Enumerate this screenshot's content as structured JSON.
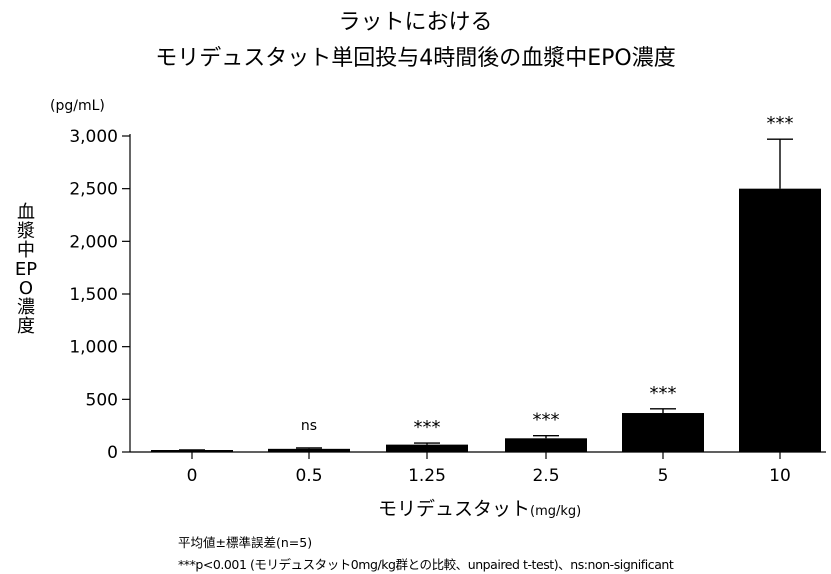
{
  "title_line1": "ラットにおける",
  "title_line2": "モリデュスタット単回投与4時間後の血漿中EPO濃度",
  "footnotes": [
    "平均値±標準誤差(n=5)",
    "***p<0.001 (モリデュスタット0mg/kg群との比較、unpaired t-test)、ns:non-significant"
  ],
  "chart_data": {
    "type": "bar",
    "title": "ラットにおける モリデュスタット単回投与4時間後の血漿中EPO濃度",
    "ylabel": "血漿中EPO濃度",
    "yunit": "(pg/mL)",
    "xlabel": "モリデュスタット",
    "xunit": "(mg/kg)",
    "categories": [
      "0",
      "0.5",
      "1.25",
      "2.5",
      "5",
      "10"
    ],
    "values": [
      15,
      30,
      70,
      130,
      370,
      2500
    ],
    "errors": [
      5,
      8,
      15,
      25,
      40,
      470
    ],
    "significance": [
      "",
      "ns",
      "***",
      "***",
      "***",
      "***"
    ],
    "ylim": [
      0,
      3000
    ],
    "yticks": [
      0,
      500,
      1000,
      1500,
      2000,
      2500,
      3000
    ],
    "ytick_labels": [
      "0",
      "500",
      "1,000",
      "1,500",
      "2,000",
      "2,500",
      "3,000"
    ],
    "bar_color": "#000000",
    "grid": false,
    "legend": false
  }
}
